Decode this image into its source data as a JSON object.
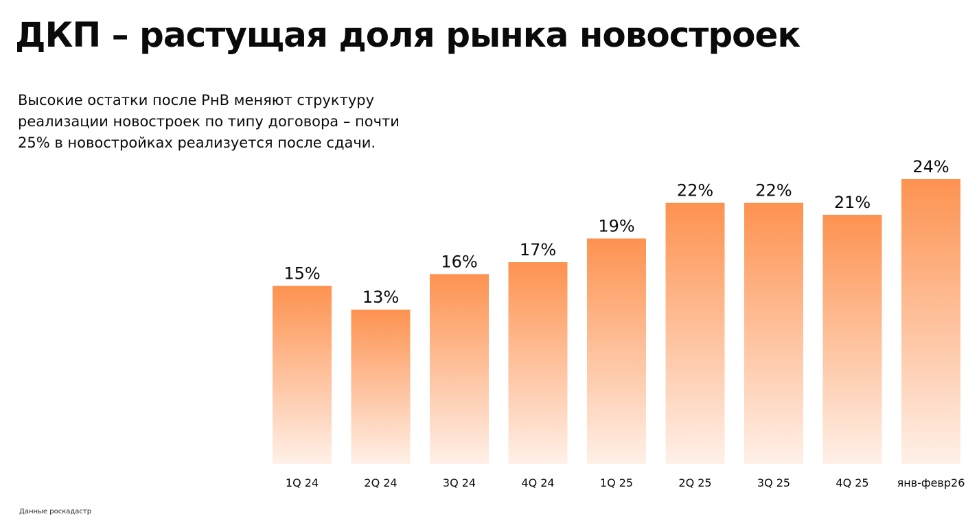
{
  "title": "ДКП – растущая доля рынка новостроек",
  "subtitle": "Высокие остатки после РнВ меняют структуру реализации новостроек по типу договора – почти 25% в новостройках реализуется после сдачи.",
  "source": "Данные роскадастр",
  "colors": {
    "bar_top": "#fd9250",
    "bar_bottom": "#fff0e8",
    "text": "#0a0a0a"
  },
  "chart_data": {
    "type": "bar",
    "categories": [
      "1Q 24",
      "2Q 24",
      "3Q 24",
      "4Q 24",
      "1Q 25",
      "2Q 25",
      "3Q 25",
      "4Q 25",
      "янв-февр26"
    ],
    "values": [
      15,
      13,
      16,
      17,
      19,
      22,
      22,
      21,
      24
    ],
    "data_labels": [
      "15%",
      "13%",
      "16%",
      "17%",
      "19%",
      "22%",
      "22%",
      "21%",
      "24%"
    ],
    "unit": "%",
    "ylim": [
      0,
      24
    ],
    "grid": false,
    "legend": "none"
  }
}
